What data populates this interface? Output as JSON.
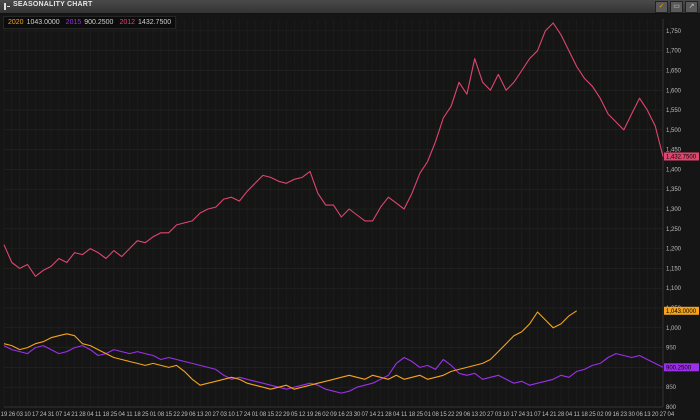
{
  "window": {
    "title": "SEASONALITY CHART"
  },
  "toolbar": {
    "icons": [
      "chart-settings-icon",
      "window-restore-icon",
      "popout-icon"
    ]
  },
  "legend": [
    {
      "year": "2020",
      "value": "1043.0000",
      "color": "#f5a31a"
    },
    {
      "year": "2015",
      "value": "900.2500",
      "color": "#9b30e8"
    },
    {
      "year": "2012",
      "value": "1432.7500",
      "color": "#e0456e"
    }
  ],
  "chart_data": {
    "type": "line",
    "ylim": [
      800,
      1780
    ],
    "yticks": [
      800,
      850,
      900,
      950,
      1000,
      1050,
      1100,
      1150,
      1200,
      1250,
      1300,
      1350,
      1400,
      1450,
      1500,
      1550,
      1600,
      1650,
      1700,
      1750
    ],
    "ytick_labels": [
      "800",
      "850",
      "900",
      "950",
      "1,000",
      "1,050",
      "1,100",
      "1,150",
      "1,200",
      "1,250",
      "1,300",
      "1,350",
      "1,400",
      "1,450",
      "1,500",
      "1,550",
      "1,600",
      "1,650",
      "1,700",
      "1,750"
    ],
    "xticks": [
      "19",
      "26",
      "03",
      "10",
      "17",
      "24",
      "31",
      "07",
      "14",
      "21",
      "28",
      "04",
      "11",
      "18",
      "25",
      "04",
      "11",
      "18",
      "25",
      "01",
      "08",
      "15",
      "22",
      "29",
      "06",
      "13",
      "20",
      "27",
      "03",
      "10",
      "17",
      "24",
      "01",
      "08",
      "15",
      "22",
      "29",
      "05",
      "12",
      "19",
      "26",
      "02",
      "09",
      "16",
      "23",
      "30",
      "07",
      "14",
      "21",
      "28",
      "04",
      "11",
      "18",
      "25",
      "01",
      "08",
      "15",
      "22",
      "29",
      "06",
      "13",
      "20",
      "27",
      "03",
      "10",
      "17",
      "24",
      "31",
      "07",
      "14",
      "21",
      "28",
      "04",
      "11",
      "18",
      "25",
      "02",
      "09",
      "16",
      "23",
      "30",
      "06",
      "13",
      "20",
      "27",
      "04"
    ],
    "x_count": 85,
    "series": [
      {
        "year": "2012",
        "color": "#e0456e",
        "last_label": "1,432.7500",
        "points": [
          [
            0,
            1210
          ],
          [
            1,
            1165
          ],
          [
            2,
            1150
          ],
          [
            3,
            1160
          ],
          [
            4,
            1130
          ],
          [
            5,
            1145
          ],
          [
            6,
            1155
          ],
          [
            7,
            1175
          ],
          [
            8,
            1165
          ],
          [
            9,
            1190
          ],
          [
            10,
            1185
          ],
          [
            11,
            1200
          ],
          [
            12,
            1190
          ],
          [
            13,
            1175
          ],
          [
            14,
            1195
          ],
          [
            15,
            1180
          ],
          [
            16,
            1200
          ],
          [
            17,
            1220
          ],
          [
            18,
            1215
          ],
          [
            19,
            1230
          ],
          [
            20,
            1240
          ],
          [
            21,
            1240
          ],
          [
            22,
            1260
          ],
          [
            23,
            1265
          ],
          [
            24,
            1270
          ],
          [
            25,
            1290
          ],
          [
            26,
            1300
          ],
          [
            27,
            1305
          ],
          [
            28,
            1325
          ],
          [
            29,
            1330
          ],
          [
            30,
            1320
          ],
          [
            31,
            1345
          ],
          [
            32,
            1365
          ],
          [
            33,
            1385
          ],
          [
            34,
            1380
          ],
          [
            35,
            1370
          ],
          [
            36,
            1365
          ],
          [
            37,
            1375
          ],
          [
            38,
            1380
          ],
          [
            39,
            1395
          ],
          [
            40,
            1340
          ],
          [
            41,
            1310
          ],
          [
            42,
            1310
          ],
          [
            43,
            1280
          ],
          [
            44,
            1300
          ],
          [
            45,
            1285
          ],
          [
            46,
            1270
          ],
          [
            47,
            1270
          ],
          [
            48,
            1305
          ],
          [
            49,
            1330
          ],
          [
            50,
            1315
          ],
          [
            51,
            1300
          ],
          [
            52,
            1340
          ],
          [
            53,
            1390
          ],
          [
            54,
            1420
          ],
          [
            55,
            1470
          ],
          [
            56,
            1530
          ],
          [
            57,
            1560
          ],
          [
            58,
            1620
          ],
          [
            59,
            1590
          ],
          [
            60,
            1680
          ],
          [
            61,
            1620
          ],
          [
            62,
            1600
          ],
          [
            63,
            1640
          ],
          [
            64,
            1600
          ],
          [
            65,
            1620
          ],
          [
            66,
            1650
          ],
          [
            67,
            1680
          ],
          [
            68,
            1700
          ],
          [
            69,
            1750
          ],
          [
            70,
            1770
          ],
          [
            71,
            1740
          ],
          [
            72,
            1700
          ],
          [
            73,
            1660
          ],
          [
            74,
            1630
          ],
          [
            75,
            1610
          ],
          [
            76,
            1580
          ],
          [
            77,
            1540
          ],
          [
            78,
            1520
          ],
          [
            79,
            1500
          ],
          [
            80,
            1540
          ],
          [
            81,
            1580
          ],
          [
            82,
            1550
          ],
          [
            83,
            1510
          ],
          [
            84,
            1432.75
          ]
        ]
      },
      {
        "year": "2015",
        "color": "#9b30e8",
        "last_label": "900.2500",
        "points": [
          [
            0,
            955
          ],
          [
            1,
            945
          ],
          [
            2,
            940
          ],
          [
            3,
            935
          ],
          [
            4,
            950
          ],
          [
            5,
            955
          ],
          [
            6,
            945
          ],
          [
            7,
            935
          ],
          [
            8,
            940
          ],
          [
            9,
            950
          ],
          [
            10,
            955
          ],
          [
            11,
            945
          ],
          [
            12,
            930
          ],
          [
            13,
            935
          ],
          [
            14,
            945
          ],
          [
            15,
            940
          ],
          [
            16,
            935
          ],
          [
            17,
            940
          ],
          [
            18,
            935
          ],
          [
            19,
            930
          ],
          [
            20,
            920
          ],
          [
            21,
            925
          ],
          [
            22,
            920
          ],
          [
            23,
            915
          ],
          [
            24,
            910
          ],
          [
            25,
            905
          ],
          [
            26,
            900
          ],
          [
            27,
            895
          ],
          [
            28,
            880
          ],
          [
            29,
            870
          ],
          [
            30,
            875
          ],
          [
            31,
            870
          ],
          [
            32,
            865
          ],
          [
            33,
            860
          ],
          [
            34,
            855
          ],
          [
            35,
            850
          ],
          [
            36,
            845
          ],
          [
            37,
            850
          ],
          [
            38,
            855
          ],
          [
            39,
            860
          ],
          [
            40,
            855
          ],
          [
            41,
            845
          ],
          [
            42,
            840
          ],
          [
            43,
            835
          ],
          [
            44,
            840
          ],
          [
            45,
            850
          ],
          [
            46,
            855
          ],
          [
            47,
            860
          ],
          [
            48,
            870
          ],
          [
            49,
            880
          ],
          [
            50,
            910
          ],
          [
            51,
            925
          ],
          [
            52,
            915
          ],
          [
            53,
            900
          ],
          [
            54,
            905
          ],
          [
            55,
            895
          ],
          [
            56,
            920
          ],
          [
            57,
            905
          ],
          [
            58,
            885
          ],
          [
            59,
            880
          ],
          [
            60,
            885
          ],
          [
            61,
            870
          ],
          [
            62,
            875
          ],
          [
            63,
            880
          ],
          [
            64,
            870
          ],
          [
            65,
            860
          ],
          [
            66,
            865
          ],
          [
            67,
            855
          ],
          [
            68,
            860
          ],
          [
            69,
            865
          ],
          [
            70,
            870
          ],
          [
            71,
            880
          ],
          [
            72,
            875
          ],
          [
            73,
            890
          ],
          [
            74,
            895
          ],
          [
            75,
            905
          ],
          [
            76,
            910
          ],
          [
            77,
            925
          ],
          [
            78,
            935
          ],
          [
            79,
            930
          ],
          [
            80,
            925
          ],
          [
            81,
            930
          ],
          [
            82,
            920
          ],
          [
            83,
            910
          ],
          [
            84,
            900.25
          ]
        ]
      },
      {
        "year": "2020",
        "color": "#f5a31a",
        "last_label": "1,043.0000",
        "points": [
          [
            0,
            960
          ],
          [
            1,
            955
          ],
          [
            2,
            945
          ],
          [
            3,
            950
          ],
          [
            4,
            960
          ],
          [
            5,
            965
          ],
          [
            6,
            975
          ],
          [
            7,
            980
          ],
          [
            8,
            985
          ],
          [
            9,
            980
          ],
          [
            10,
            960
          ],
          [
            11,
            955
          ],
          [
            12,
            945
          ],
          [
            13,
            935
          ],
          [
            14,
            925
          ],
          [
            15,
            920
          ],
          [
            16,
            915
          ],
          [
            17,
            910
          ],
          [
            18,
            905
          ],
          [
            19,
            910
          ],
          [
            20,
            905
          ],
          [
            21,
            900
          ],
          [
            22,
            905
          ],
          [
            23,
            890
          ],
          [
            24,
            870
          ],
          [
            25,
            855
          ],
          [
            26,
            860
          ],
          [
            27,
            865
          ],
          [
            28,
            870
          ],
          [
            29,
            875
          ],
          [
            30,
            870
          ],
          [
            31,
            860
          ],
          [
            32,
            855
          ],
          [
            33,
            850
          ],
          [
            34,
            845
          ],
          [
            35,
            850
          ],
          [
            36,
            855
          ],
          [
            37,
            845
          ],
          [
            38,
            850
          ],
          [
            39,
            855
          ],
          [
            40,
            860
          ],
          [
            41,
            865
          ],
          [
            42,
            870
          ],
          [
            43,
            875
          ],
          [
            44,
            880
          ],
          [
            45,
            875
          ],
          [
            46,
            870
          ],
          [
            47,
            880
          ],
          [
            48,
            875
          ],
          [
            49,
            870
          ],
          [
            50,
            880
          ],
          [
            51,
            870
          ],
          [
            52,
            875
          ],
          [
            53,
            880
          ],
          [
            54,
            870
          ],
          [
            55,
            875
          ],
          [
            56,
            880
          ],
          [
            57,
            890
          ],
          [
            58,
            895
          ],
          [
            59,
            900
          ],
          [
            60,
            905
          ],
          [
            61,
            910
          ],
          [
            62,
            920
          ],
          [
            63,
            940
          ],
          [
            64,
            960
          ],
          [
            65,
            980
          ],
          [
            66,
            990
          ],
          [
            67,
            1010
          ],
          [
            68,
            1040
          ],
          [
            69,
            1020
          ],
          [
            70,
            1000
          ],
          [
            71,
            1010
          ],
          [
            72,
            1030
          ],
          [
            73,
            1043
          ]
        ]
      }
    ]
  }
}
